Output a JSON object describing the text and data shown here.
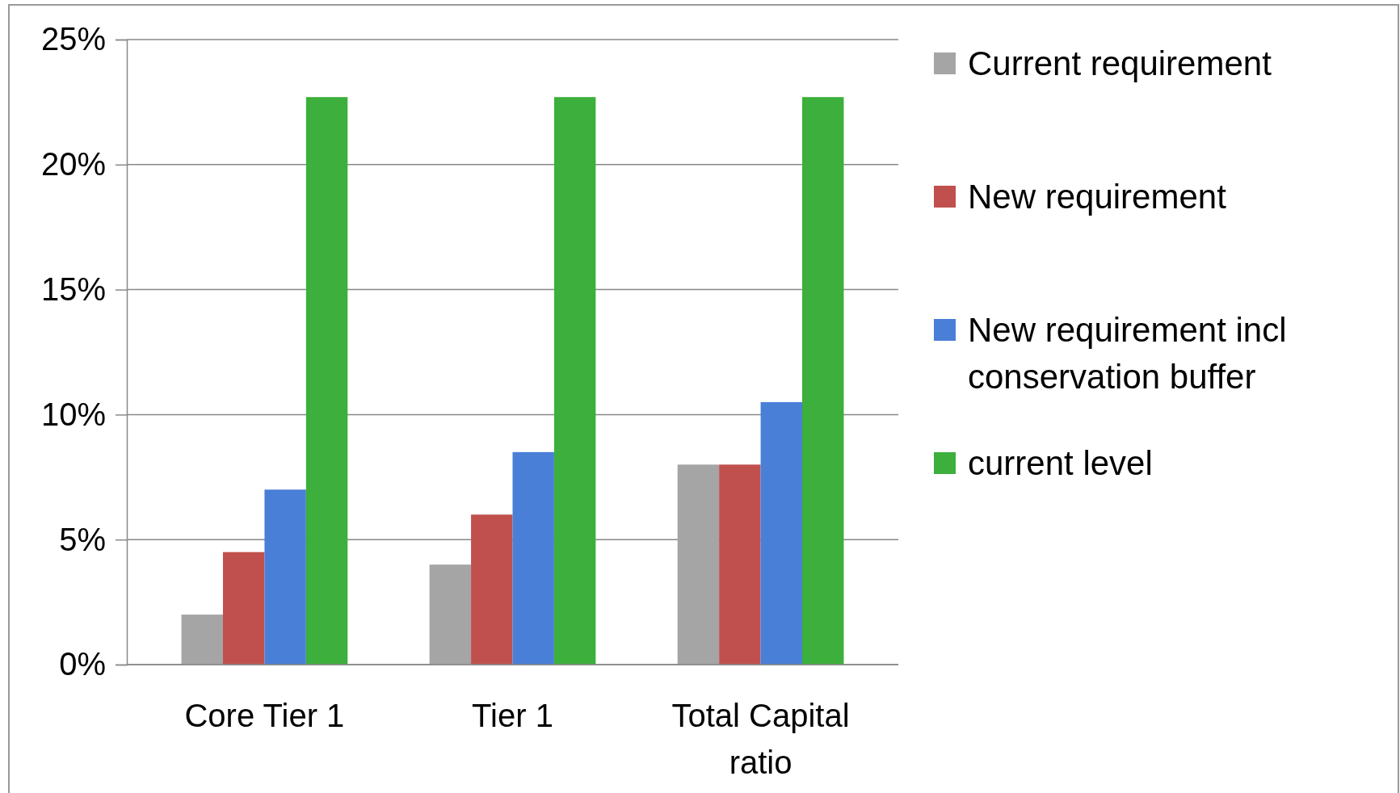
{
  "chart_data": {
    "type": "bar",
    "categories": [
      "Core Tier 1",
      "Tier 1",
      "Total Capital ratio"
    ],
    "series": [
      {
        "name": "Current requirement",
        "color": "#a5a5a5",
        "values": [
          2.0,
          4.0,
          8.0
        ]
      },
      {
        "name": "New requirement",
        "color": "#c0504d",
        "values": [
          4.5,
          6.0,
          8.0
        ]
      },
      {
        "name": "New requirement incl conservation buffer",
        "color": "#4a7fd8",
        "values": [
          7.0,
          8.5,
          10.5
        ]
      },
      {
        "name": "current level",
        "color": "#3caf3c",
        "values": [
          22.7,
          22.7,
          22.7
        ]
      }
    ],
    "ylim": [
      0,
      25
    ],
    "yticks": [
      {
        "value": 0,
        "label": "0%"
      },
      {
        "value": 5,
        "label": "5%"
      },
      {
        "value": 10,
        "label": "10%"
      },
      {
        "value": 15,
        "label": "15%"
      },
      {
        "value": 20,
        "label": "20%"
      },
      {
        "value": 25,
        "label": "25%"
      }
    ],
    "grid": "y",
    "legend": "right"
  }
}
